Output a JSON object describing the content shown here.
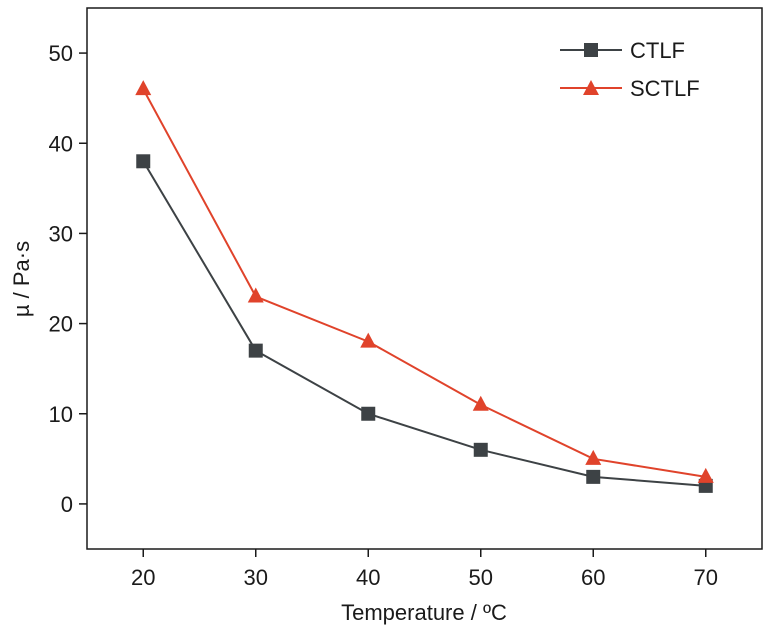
{
  "chart_data": {
    "type": "line",
    "xlabel": "Temperature / ºC",
    "ylabel": "µ / Pa·s",
    "x": [
      20,
      30,
      40,
      50,
      60,
      70
    ],
    "xlim": [
      15,
      75
    ],
    "ylim": [
      -5,
      55
    ],
    "xticks": [
      20,
      30,
      40,
      50,
      60,
      70
    ],
    "yticks": [
      0,
      10,
      20,
      30,
      40,
      50
    ],
    "xtick_labels": [
      "20",
      "30",
      "40",
      "50",
      "60",
      "70"
    ],
    "ytick_labels": [
      "0",
      "10",
      "20",
      "30",
      "40",
      "50"
    ],
    "grid": false,
    "legend_position": "top-right",
    "series": [
      {
        "name": "CTLF",
        "values": [
          38,
          17,
          10,
          6,
          3,
          2
        ],
        "color": "#3d4245",
        "marker": "square"
      },
      {
        "name": "SCTLF",
        "values": [
          46,
          23,
          18,
          11,
          5,
          3
        ],
        "color": "#e0432b",
        "marker": "triangle"
      }
    ]
  }
}
